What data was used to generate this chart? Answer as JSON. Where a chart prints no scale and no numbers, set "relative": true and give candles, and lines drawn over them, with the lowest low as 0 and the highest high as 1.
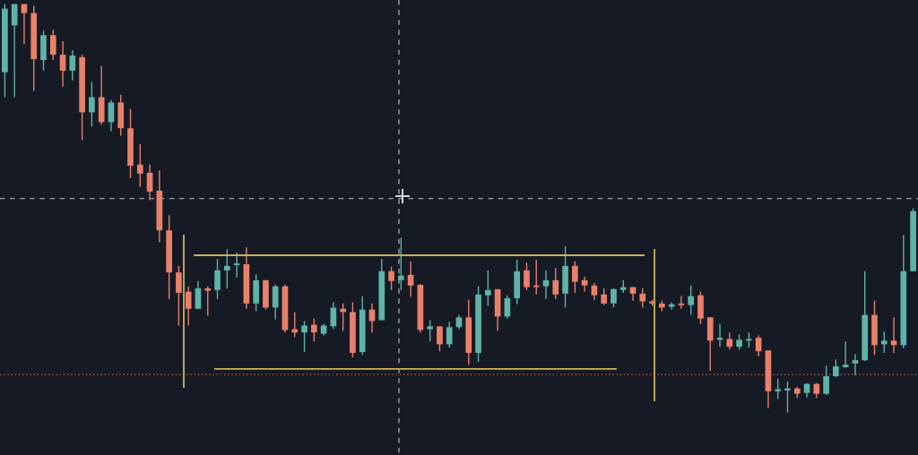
{
  "chart_data": {
    "type": "candlestick",
    "relative": true,
    "tick_labels": false,
    "categories": [
      null,
      null,
      null,
      null,
      null,
      null,
      null,
      null,
      null,
      null,
      null,
      null,
      null,
      null,
      null,
      null,
      null,
      null,
      null,
      null,
      null,
      null,
      null,
      null,
      null,
      null,
      null,
      null,
      null,
      null,
      null,
      null,
      null,
      null,
      null,
      null,
      null,
      null,
      null,
      null,
      null,
      null,
      null,
      null,
      null,
      null,
      null,
      null,
      null,
      null,
      null,
      null,
      null,
      null,
      null,
      null,
      null,
      null,
      null,
      null,
      null,
      null,
      null,
      null,
      null,
      null,
      null,
      null,
      null,
      null,
      null,
      null,
      null,
      null,
      null,
      null,
      null,
      null,
      null,
      null,
      null,
      null,
      null,
      null,
      null,
      null,
      null,
      null,
      null,
      null,
      null,
      null,
      null,
      null,
      null
    ],
    "ohlc": [
      [
        0.833,
        1.0,
        0.772,
        0.989
      ],
      [
        0.948,
        1.0,
        0.772,
        1.0
      ],
      [
        1.0,
        1.0,
        0.902,
        0.978
      ],
      [
        0.978,
        0.996,
        0.787,
        0.865
      ],
      [
        0.863,
        0.935,
        0.837,
        0.924
      ],
      [
        0.924,
        0.937,
        0.863,
        0.876
      ],
      [
        0.876,
        0.909,
        0.798,
        0.837
      ],
      [
        0.837,
        0.887,
        0.813,
        0.874
      ],
      [
        0.87,
        0.876,
        0.667,
        0.735
      ],
      [
        0.735,
        0.809,
        0.7,
        0.772
      ],
      [
        0.772,
        0.848,
        0.704,
        0.711
      ],
      [
        0.711,
        0.765,
        0.689,
        0.759
      ],
      [
        0.759,
        0.778,
        0.678,
        0.696
      ],
      [
        0.696,
        0.743,
        0.574,
        0.604
      ],
      [
        0.607,
        0.657,
        0.552,
        0.585
      ],
      [
        0.587,
        0.607,
        0.52,
        0.541
      ],
      [
        0.543,
        0.593,
        0.417,
        0.446
      ],
      [
        0.446,
        0.483,
        0.278,
        0.343
      ],
      [
        0.343,
        0.359,
        0.213,
        0.293
      ],
      [
        0.296,
        0.309,
        0.213,
        0.254
      ],
      [
        0.254,
        0.322,
        0.254,
        0.304
      ],
      [
        0.304,
        0.309,
        0.237,
        0.298
      ],
      [
        0.3,
        0.376,
        0.278,
        0.348
      ],
      [
        0.348,
        0.4,
        0.304,
        0.359
      ],
      [
        0.361,
        0.391,
        0.33,
        0.365
      ],
      [
        0.363,
        0.404,
        0.254,
        0.267
      ],
      [
        0.267,
        0.339,
        0.248,
        0.324
      ],
      [
        0.324,
        0.324,
        0.252,
        0.257
      ],
      [
        0.257,
        0.313,
        0.228,
        0.309
      ],
      [
        0.309,
        0.313,
        0.196,
        0.202
      ],
      [
        0.204,
        0.246,
        0.185,
        0.196
      ],
      [
        0.196,
        0.224,
        0.148,
        0.213
      ],
      [
        0.215,
        0.23,
        0.174,
        0.196
      ],
      [
        0.193,
        0.217,
        0.189,
        0.213
      ],
      [
        0.211,
        0.27,
        0.204,
        0.257
      ],
      [
        0.254,
        0.267,
        0.2,
        0.246
      ],
      [
        0.246,
        0.27,
        0.135,
        0.146
      ],
      [
        0.148,
        0.285,
        0.141,
        0.252
      ],
      [
        0.252,
        0.267,
        0.196,
        0.224
      ],
      [
        0.226,
        0.376,
        0.226,
        0.346
      ],
      [
        0.346,
        0.357,
        0.3,
        0.322
      ],
      [
        0.324,
        0.428,
        0.3,
        0.335
      ],
      [
        0.337,
        0.37,
        0.283,
        0.311
      ],
      [
        0.313,
        0.313,
        0.196,
        0.202
      ],
      [
        0.204,
        0.226,
        0.174,
        0.211
      ],
      [
        0.211,
        0.211,
        0.15,
        0.167
      ],
      [
        0.167,
        0.222,
        0.159,
        0.209
      ],
      [
        0.209,
        0.239,
        0.204,
        0.233
      ],
      [
        0.233,
        0.276,
        0.117,
        0.146
      ],
      [
        0.146,
        0.309,
        0.124,
        0.289
      ],
      [
        0.287,
        0.348,
        0.261,
        0.3
      ],
      [
        0.302,
        0.302,
        0.2,
        0.235
      ],
      [
        0.235,
        0.287,
        0.23,
        0.28
      ],
      [
        0.28,
        0.374,
        0.265,
        0.346
      ],
      [
        0.348,
        0.367,
        0.3,
        0.307
      ],
      [
        0.311,
        0.374,
        0.289,
        0.307
      ],
      [
        0.309,
        0.348,
        0.278,
        0.324
      ],
      [
        0.324,
        0.354,
        0.278,
        0.289
      ],
      [
        0.291,
        0.407,
        0.257,
        0.359
      ],
      [
        0.359,
        0.37,
        0.293,
        0.32
      ],
      [
        0.324,
        0.333,
        0.296,
        0.311
      ],
      [
        0.311,
        0.317,
        0.276,
        0.287
      ],
      [
        0.289,
        0.304,
        0.263,
        0.267
      ],
      [
        0.267,
        0.304,
        0.257,
        0.302
      ],
      [
        0.3,
        0.324,
        0.293,
        0.307
      ],
      [
        0.307,
        0.307,
        0.274,
        0.291
      ],
      [
        0.291,
        0.304,
        0.257,
        0.272
      ],
      [
        0.272,
        0.276,
        0.261,
        0.267
      ],
      [
        0.267,
        0.274,
        0.248,
        0.257
      ],
      [
        0.259,
        0.27,
        0.252,
        0.265
      ],
      [
        0.267,
        0.285,
        0.254,
        0.263
      ],
      [
        0.263,
        0.311,
        0.239,
        0.285
      ],
      [
        0.287,
        0.296,
        0.217,
        0.23
      ],
      [
        0.233,
        0.233,
        0.102,
        0.176
      ],
      [
        0.178,
        0.217,
        0.161,
        0.183
      ],
      [
        0.18,
        0.196,
        0.154,
        0.161
      ],
      [
        0.161,
        0.191,
        0.154,
        0.178
      ],
      [
        0.176,
        0.196,
        0.159,
        0.18
      ],
      [
        0.183,
        0.189,
        0.137,
        0.15
      ],
      [
        0.152,
        0.152,
        0.011,
        0.052
      ],
      [
        0.052,
        0.083,
        0.033,
        0.057
      ],
      [
        0.054,
        0.076,
        0.0,
        0.059
      ],
      [
        0.059,
        0.063,
        0.035,
        0.046
      ],
      [
        0.048,
        0.072,
        0.037,
        0.07
      ],
      [
        0.07,
        0.072,
        0.035,
        0.046
      ],
      [
        0.046,
        0.115,
        0.043,
        0.089
      ],
      [
        0.089,
        0.13,
        0.087,
        0.113
      ],
      [
        0.111,
        0.174,
        0.109,
        0.117
      ],
      [
        0.12,
        0.143,
        0.091,
        0.128
      ],
      [
        0.128,
        0.346,
        0.126,
        0.239
      ],
      [
        0.239,
        0.274,
        0.141,
        0.165
      ],
      [
        0.167,
        0.198,
        0.146,
        0.176
      ],
      [
        0.176,
        0.233,
        0.146,
        0.165
      ],
      [
        0.165,
        0.435,
        0.157,
        0.346
      ],
      [
        0.346,
        0.5,
        0.346,
        0.493
      ]
    ],
    "colors": [
      "#5fb3a8",
      "#5fb3a8",
      "#e9806a",
      "#e9806a",
      "#5fb3a8",
      "#e9806a",
      "#e9806a",
      "#5fb3a8",
      "#e9806a",
      "#5fb3a8",
      "#e9806a",
      "#5fb3a8",
      "#e9806a",
      "#e9806a",
      "#e9806a",
      "#e9806a",
      "#e9806a",
      "#e9806a",
      "#e9806a",
      "#e9806a",
      "#5fb3a8",
      "#e9806a",
      "#5fb3a8",
      "#5fb3a8",
      "#5fb3a8",
      "#e9806a",
      "#5fb3a8",
      "#e9806a",
      "#5fb3a8",
      "#e9806a",
      "#e9806a",
      "#5fb3a8",
      "#e9806a",
      "#5fb3a8",
      "#5fb3a8",
      "#e9806a",
      "#e9806a",
      "#5fb3a8",
      "#e9806a",
      "#5fb3a8",
      "#e9806a",
      "#5fb3a8",
      "#e9806a",
      "#e9806a",
      "#5fb3a8",
      "#e9806a",
      "#5fb3a8",
      "#5fb3a8",
      "#e9806a",
      "#5fb3a8",
      "#5fb3a8",
      "#e9806a",
      "#5fb3a8",
      "#5fb3a8",
      "#e9806a",
      "#e9806a",
      "#5fb3a8",
      "#e9806a",
      "#5fb3a8",
      "#e9806a",
      "#e9806a",
      "#e9806a",
      "#e9806a",
      "#5fb3a8",
      "#5fb3a8",
      "#e9806a",
      "#e9806a",
      "#e9806a",
      "#e9806a",
      "#5fb3a8",
      "#e9806a",
      "#5fb3a8",
      "#e9806a",
      "#e9806a",
      "#5fb3a8",
      "#e9806a",
      "#5fb3a8",
      "#5fb3a8",
      "#e9806a",
      "#e9806a",
      "#5fb3a8",
      "#5fb3a8",
      "#e9806a",
      "#5fb3a8",
      "#e9806a",
      "#5fb3a8",
      "#5fb3a8",
      "#5fb3a8",
      "#5fb3a8",
      "#5fb3a8",
      "#e9806a",
      "#5fb3a8",
      "#e9806a",
      "#5fb3a8",
      "#5fb3a8"
    ],
    "ref_lines": [
      {
        "axis": "y",
        "value": 0.524,
        "color": "#9aa0ad",
        "line_style": "dashed"
      },
      {
        "axis": "y",
        "value": 0.093,
        "color": "#b8604a",
        "line_style": "dotted"
      },
      {
        "axis": "y",
        "value": 0.385,
        "color": "#c8b45a",
        "line_style": "solid"
      },
      {
        "axis": "y",
        "value": 0.107,
        "color": "#c8b45a",
        "line_style": "solid"
      }
    ]
  }
}
